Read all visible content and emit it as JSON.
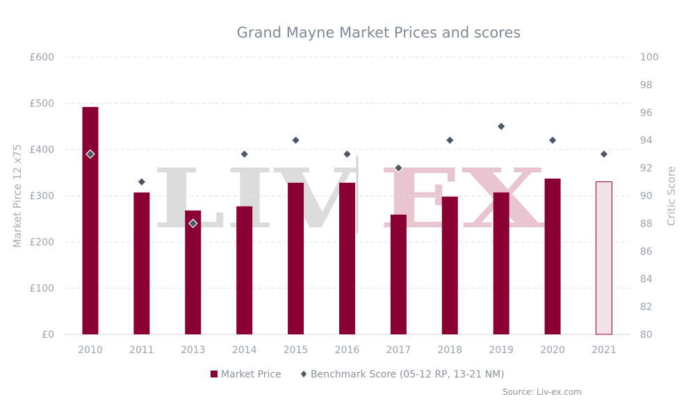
{
  "chart_data": {
    "type": "bar",
    "title": "Grand Mayne Market Prices and scores",
    "categories": [
      "2010",
      "2011",
      "2013",
      "2014",
      "2015",
      "2016",
      "2017",
      "2018",
      "2019",
      "2020",
      "2021"
    ],
    "series": [
      {
        "name": "Market Price",
        "kind": "bar",
        "axis": "left",
        "values": [
          492,
          307,
          268,
          277,
          328,
          328,
          259,
          298,
          307,
          337,
          330
        ],
        "color": "#8a0033",
        "highlight_last": {
          "fill": "#f5e1e8",
          "stroke": "#8a0033"
        }
      },
      {
        "name": "Benchmark Score (05-12 RP, 13-21 NM)",
        "kind": "scatter",
        "axis": "right",
        "values": [
          93,
          91,
          88,
          93,
          94,
          93,
          92,
          94,
          95,
          94,
          93
        ],
        "color": "#4c5865"
      }
    ],
    "ylabel": "Market Pirce 12 x75",
    "ylabel_right": "Critic Score",
    "ylim": [
      0,
      600
    ],
    "ylim_right": [
      80,
      100
    ],
    "yticks": [
      "£0",
      "£100",
      "£200",
      "£300",
      "£400",
      "£500",
      "£600"
    ],
    "yticks_right": [
      "80",
      "82",
      "84",
      "86",
      "88",
      "90",
      "92",
      "94",
      "96",
      "98",
      "100"
    ],
    "grid": true,
    "legend": "bottom-center",
    "source": "Source: Liv-ex.com",
    "watermark": {
      "left": "LIV",
      "right": "EX"
    }
  }
}
